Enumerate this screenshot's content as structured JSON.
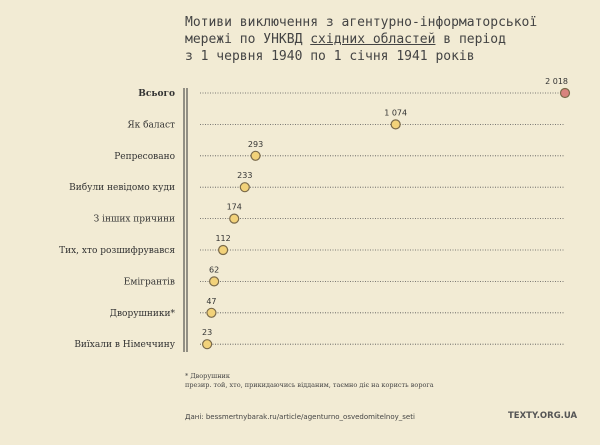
{
  "title": {
    "line1": "Мотиви виключення з агентурно-інформаторської",
    "line2_pre": "мережі по УНКВД ",
    "line2_link": "східних областей",
    "line2_post": " в період",
    "line3": "з 1 червня 1940 по 1 січня 1941 років"
  },
  "chart_data": {
    "type": "scatter",
    "categories": [
      "Всього",
      "Як баласт",
      "Репресовано",
      "Вибули невідомо куди",
      "З інших причини",
      "Тих, хто розшифрувався",
      "Емігрантів",
      "Дворушники*",
      "Виїхали в Німеччину"
    ],
    "values": [
      2018,
      1074,
      293,
      233,
      174,
      112,
      62,
      47,
      23
    ],
    "value_labels": [
      "2 018",
      "1 074",
      "293",
      "233",
      "174",
      "112",
      "62",
      "47",
      "23"
    ],
    "xlim": [
      0,
      2018
    ],
    "colors": {
      "total": "#d9837e",
      "item": "#f2d27a"
    }
  },
  "footnote": {
    "term": "* Дворушник",
    "definition": "презир. той, хто, прикидаючись відданим, таємно діє на користь ворога"
  },
  "source": "Дані: bessmertnybarak.ru/article/agenturno_osvedomitelnoy_seti",
  "brand": "TEXTY.ORG.UA"
}
